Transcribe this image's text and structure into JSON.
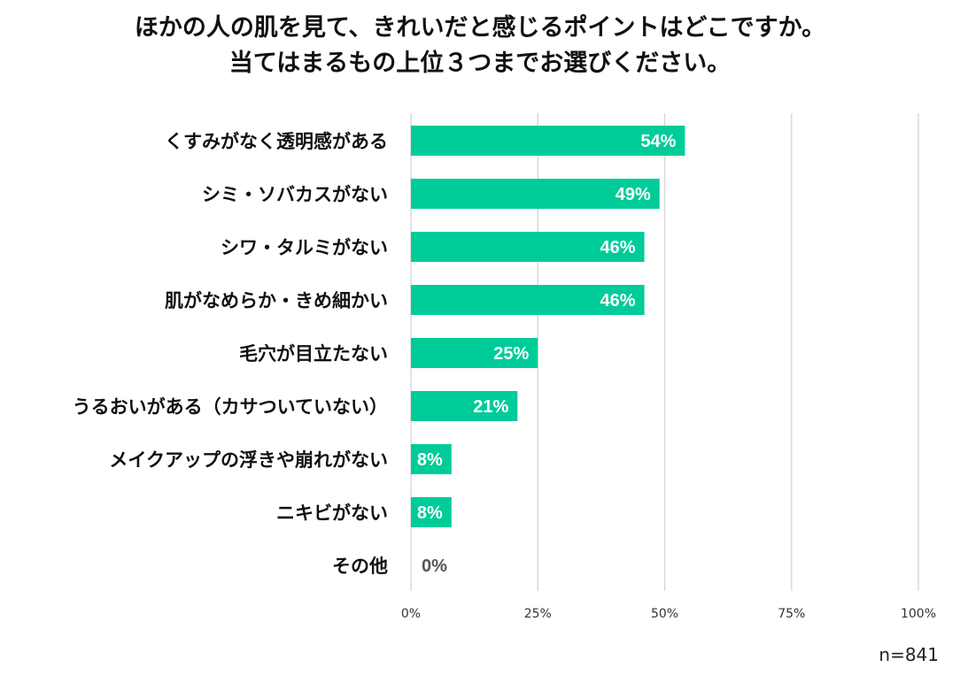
{
  "title_line1": "ほかの人の肌を見て、きれいだと感じるポイントはどこですか。",
  "title_line2": "当てはまるもの上位３つまでお選びください。",
  "sample_note": "n=841",
  "colors": {
    "bar": "#00CC99",
    "value_label_on_bar": "#ffffff",
    "value_label_outside": "#555555",
    "grid": "#d9d9d9"
  },
  "chart_data": {
    "type": "bar",
    "orientation": "horizontal",
    "categories": [
      "くすみがなく透明感がある",
      "シミ・ソバカスがない",
      "シワ・タルミがない",
      "肌がなめらか・きめ細かい",
      "毛穴が目立たない",
      "うるおいがある（カサついていない）",
      "メイクアップの浮きや崩れがない",
      "ニキビがない",
      "その他"
    ],
    "values": [
      54,
      49,
      46,
      46,
      25,
      21,
      8,
      8,
      0
    ],
    "value_labels": [
      "54%",
      "49%",
      "46%",
      "46%",
      "25%",
      "21%",
      "8%",
      "8%",
      "0%"
    ],
    "xlim": [
      0,
      100
    ],
    "xticks": [
      0,
      25,
      50,
      75,
      100
    ],
    "xtick_labels": [
      "0%",
      "25%",
      "50%",
      "75%",
      "100%"
    ],
    "grid": true,
    "legend": "none"
  }
}
